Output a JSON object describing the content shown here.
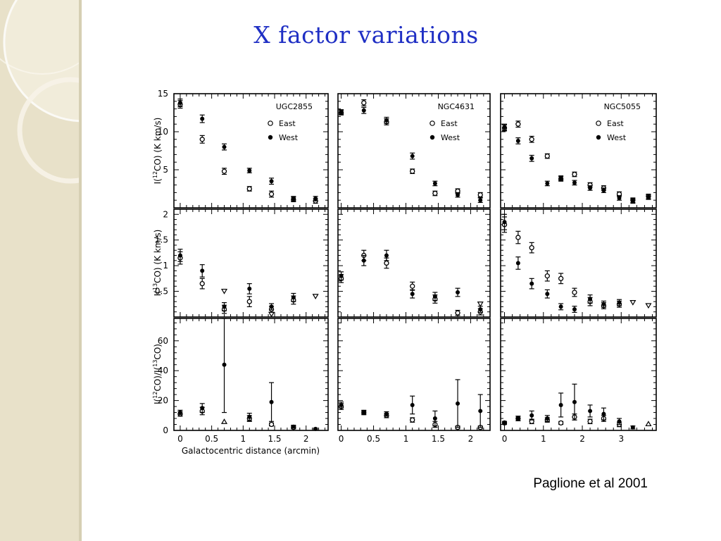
{
  "slide": {
    "title": "X factor variations",
    "citation": "Paglione et al 2001"
  },
  "theme": {
    "title_color": "#1f2fc4",
    "sidebar_color": "#e8e1c9"
  },
  "chart_data": {
    "type": "scatter",
    "xlabel": "Galactocentric distance (arcmin)",
    "legend": {
      "entries": [
        "East",
        "West"
      ],
      "placement": "top-right"
    },
    "columns": [
      {
        "name": "UGC2855",
        "xlim": [
          -0.1,
          2.35
        ],
        "xticks": [
          0,
          0.5,
          1,
          1.5,
          2
        ],
        "xticklabels": [
          "0",
          "0.5",
          "1",
          "1.5",
          "2"
        ],
        "show_legend": true
      },
      {
        "name": "NGC4631",
        "xlim": [
          -0.05,
          2.3
        ],
        "xticks": [
          0,
          0.5,
          1,
          1.5,
          2
        ],
        "xticklabels": [
          "0",
          "0.5",
          "1",
          "1.5",
          "2"
        ],
        "show_legend": true
      },
      {
        "name": "NGC5055",
        "xlim": [
          -0.1,
          3.9
        ],
        "xticks": [
          0,
          1,
          2,
          3
        ],
        "xticklabels": [
          "0",
          "1",
          "2",
          "3"
        ],
        "show_legend": true
      }
    ],
    "rows": [
      {
        "ylabel": "I(12CO) (K km/s)",
        "ylim": [
          0,
          15
        ],
        "yticks": [
          5,
          10,
          15
        ],
        "yticklabels": [
          "5",
          "10",
          "15"
        ]
      },
      {
        "ylabel": "I(13CO) (K km/s)",
        "ylim": [
          0,
          2.1
        ],
        "yticks": [
          0.5,
          1,
          1.5,
          2
        ],
        "yticklabels": [
          "0.5",
          "1",
          "1.5",
          "2"
        ]
      },
      {
        "ylabel": "I(12CO)/I(13CO)",
        "ylim": [
          0,
          75
        ],
        "yticks": [
          0,
          20,
          40,
          60
        ],
        "yticklabels": [
          "0",
          "20",
          "40",
          "60"
        ]
      }
    ],
    "panels": [
      {
        "row": 0,
        "col": 0,
        "east": [
          [
            0.0,
            13.6,
            0.5
          ],
          [
            0.35,
            9.0,
            0.5
          ],
          [
            0.7,
            4.8,
            0.4
          ],
          [
            1.1,
            2.5,
            0.3
          ],
          [
            1.45,
            1.8,
            0.4
          ],
          [
            1.8,
            1.1,
            0.3
          ],
          [
            2.15,
            0.9,
            0.3
          ]
        ],
        "west": [
          [
            0.0,
            13.8,
            0.5
          ],
          [
            0.35,
            11.7,
            0.5
          ],
          [
            0.7,
            8.0,
            0.4
          ],
          [
            1.1,
            4.9,
            0.3
          ],
          [
            1.45,
            3.5,
            0.4
          ],
          [
            1.8,
            1.2,
            0.3
          ],
          [
            2.15,
            1.2,
            0.3
          ]
        ]
      },
      {
        "row": 0,
        "col": 1,
        "east": [
          [
            0.0,
            12.5,
            0.3
          ],
          [
            0.35,
            13.8,
            0.4
          ],
          [
            0.7,
            11.3,
            0.4
          ],
          [
            1.1,
            4.8,
            0.3
          ],
          [
            1.45,
            1.9,
            0.3
          ],
          [
            1.8,
            2.2,
            0.3
          ],
          [
            2.15,
            1.7,
            0.3
          ]
        ],
        "west": [
          [
            0.0,
            12.6,
            0.3
          ],
          [
            0.35,
            12.8,
            0.4
          ],
          [
            0.7,
            11.5,
            0.4
          ],
          [
            1.1,
            6.8,
            0.4
          ],
          [
            1.45,
            3.2,
            0.3
          ],
          [
            1.8,
            1.7,
            0.3
          ],
          [
            2.15,
            1.0,
            0.3
          ]
        ]
      },
      {
        "row": 0,
        "col": 2,
        "east": [
          [
            0.0,
            10.5,
            0.4
          ],
          [
            0.35,
            11.0,
            0.4
          ],
          [
            0.7,
            9.0,
            0.4
          ],
          [
            1.1,
            6.8,
            0.3
          ],
          [
            1.45,
            3.8,
            0.3
          ],
          [
            1.8,
            4.4,
            0.3
          ],
          [
            2.2,
            3.0,
            0.3
          ],
          [
            2.55,
            2.6,
            0.3
          ],
          [
            2.95,
            1.8,
            0.3
          ],
          [
            3.3,
            1.0,
            0.3
          ],
          [
            3.7,
            1.5,
            0.3
          ]
        ],
        "west": [
          [
            0.0,
            10.6,
            0.4
          ],
          [
            0.35,
            8.8,
            0.4
          ],
          [
            0.7,
            6.5,
            0.4
          ],
          [
            1.1,
            3.2,
            0.3
          ],
          [
            1.45,
            3.9,
            0.3
          ],
          [
            1.8,
            3.3,
            0.3
          ],
          [
            2.2,
            2.6,
            0.3
          ],
          [
            2.55,
            2.3,
            0.3
          ],
          [
            2.95,
            1.3,
            0.3
          ],
          [
            3.3,
            0.9,
            0.3
          ],
          [
            3.7,
            1.4,
            0.3
          ]
        ]
      },
      {
        "row": 1,
        "col": 0,
        "east": [
          [
            0.0,
            1.15,
            0.12
          ],
          [
            0.35,
            0.65,
            0.1
          ],
          [
            0.7,
            0.15,
            0.08
          ],
          [
            1.1,
            0.3,
            0.1
          ],
          [
            1.45,
            0.15,
            0.06
          ],
          [
            1.8,
            0.33,
            0.08
          ]
        ],
        "west": [
          [
            0.0,
            1.2,
            0.12
          ],
          [
            0.35,
            0.9,
            0.12
          ],
          [
            0.7,
            0.2,
            0.08
          ],
          [
            1.1,
            0.55,
            0.1
          ],
          [
            1.45,
            0.2,
            0.06
          ],
          [
            1.8,
            0.38,
            0.08
          ]
        ],
        "limits": [
          [
            0.7,
            0.5
          ],
          [
            1.45,
            0.05
          ],
          [
            2.15,
            0.4
          ]
        ]
      },
      {
        "row": 1,
        "col": 1,
        "east": [
          [
            0.0,
            0.75,
            0.08
          ],
          [
            0.35,
            1.2,
            0.1
          ],
          [
            0.7,
            1.05,
            0.1
          ],
          [
            1.1,
            0.6,
            0.08
          ],
          [
            1.45,
            0.35,
            0.08
          ],
          [
            1.8,
            0.08,
            0.05
          ],
          [
            2.15,
            0.1,
            0.06
          ]
        ],
        "west": [
          [
            0.0,
            0.8,
            0.08
          ],
          [
            0.35,
            1.1,
            0.1
          ],
          [
            0.7,
            1.2,
            0.1
          ],
          [
            1.1,
            0.45,
            0.08
          ],
          [
            1.45,
            0.4,
            0.08
          ],
          [
            1.8,
            0.48,
            0.08
          ],
          [
            2.15,
            0.15,
            0.06
          ]
        ],
        "limits": [
          [
            2.15,
            0.25
          ]
        ]
      },
      {
        "row": 1,
        "col": 2,
        "east": [
          [
            0.0,
            1.8,
            0.15
          ],
          [
            0.35,
            1.55,
            0.12
          ],
          [
            0.7,
            1.35,
            0.1
          ],
          [
            1.1,
            0.8,
            0.1
          ],
          [
            1.45,
            0.75,
            0.1
          ],
          [
            1.8,
            0.48,
            0.08
          ],
          [
            2.2,
            0.3,
            0.08
          ],
          [
            2.55,
            0.22,
            0.06
          ],
          [
            2.95,
            0.25,
            0.06
          ]
        ],
        "west": [
          [
            0.0,
            1.85,
            0.15
          ],
          [
            0.35,
            1.05,
            0.12
          ],
          [
            0.7,
            0.65,
            0.1
          ],
          [
            1.1,
            0.45,
            0.08
          ],
          [
            1.45,
            0.2,
            0.06
          ],
          [
            1.8,
            0.15,
            0.06
          ],
          [
            2.2,
            0.35,
            0.08
          ],
          [
            2.55,
            0.25,
            0.06
          ],
          [
            2.95,
            0.28,
            0.06
          ]
        ],
        "limits": [
          [
            3.3,
            0.28
          ],
          [
            3.7,
            0.22
          ]
        ]
      },
      {
        "row": 2,
        "col": 0,
        "east": [
          [
            0.0,
            11,
            1.5
          ],
          [
            0.35,
            13,
            2.5
          ],
          [
            1.1,
            8,
            2
          ],
          [
            1.45,
            4,
            1
          ],
          [
            1.8,
            2,
            1
          ]
        ],
        "west": [
          [
            0.0,
            12,
            1.5
          ],
          [
            0.35,
            15,
            3
          ],
          [
            0.7,
            44,
            32
          ],
          [
            1.1,
            9,
            2.5
          ],
          [
            1.45,
            19,
            13
          ],
          [
            1.8,
            2.5,
            1
          ],
          [
            2.15,
            1,
            0.5
          ]
        ],
        "lower_limits": [
          [
            0.7,
            6
          ]
        ]
      },
      {
        "row": 2,
        "col": 1,
        "east": [
          [
            0.0,
            16,
            2
          ],
          [
            0.35,
            12,
            1
          ],
          [
            0.7,
            10,
            1.5
          ],
          [
            1.1,
            7,
            1.5
          ],
          [
            1.45,
            4,
            2
          ],
          [
            1.8,
            2,
            1
          ],
          [
            2.15,
            2,
            1
          ]
        ],
        "west": [
          [
            0.0,
            17,
            2
          ],
          [
            0.35,
            12,
            1.5
          ],
          [
            0.7,
            11,
            1.5
          ],
          [
            1.1,
            17,
            6
          ],
          [
            1.45,
            8,
            5
          ],
          [
            1.8,
            18,
            16
          ],
          [
            2.15,
            13,
            11
          ]
        ]
      },
      {
        "row": 2,
        "col": 2,
        "east": [
          [
            0.0,
            5,
            1
          ],
          [
            0.35,
            8,
            1.5
          ],
          [
            0.7,
            6,
            1.5
          ],
          [
            1.1,
            7,
            1.5
          ],
          [
            1.45,
            5,
            1
          ],
          [
            1.8,
            9,
            2
          ],
          [
            2.2,
            6,
            1.5
          ],
          [
            2.55,
            8,
            2
          ],
          [
            2.95,
            4,
            1.5
          ]
        ],
        "west": [
          [
            0.0,
            5,
            1
          ],
          [
            0.35,
            8,
            1.5
          ],
          [
            0.7,
            10,
            3
          ],
          [
            1.1,
            8,
            2
          ],
          [
            1.45,
            17,
            8
          ],
          [
            1.8,
            19,
            12
          ],
          [
            2.2,
            13,
            4
          ],
          [
            2.55,
            11,
            4
          ],
          [
            2.95,
            6,
            2
          ],
          [
            3.3,
            2,
            1
          ]
        ],
        "lower_limits": [
          [
            3.7,
            4.5
          ]
        ]
      }
    ]
  }
}
